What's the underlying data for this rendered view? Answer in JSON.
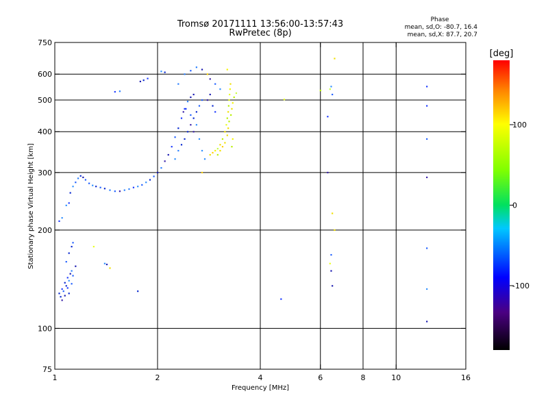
{
  "header": {
    "title": "Tromsø 20171111 13:56:00-13:57:43",
    "subtitle": "RwPretec (8p)"
  },
  "phase_box": {
    "heading": "Phase",
    "line_o": "mean, sd,O: -80.7, 16.4",
    "line_x": "mean, sd,X:  87.7, 20.7"
  },
  "chart_data": {
    "type": "scatter",
    "title": "Tromsø 20171111 13:56:00-13:57:43",
    "subtitle": "RwPretec (8p)",
    "xlabel": "Frequency [MHz]",
    "ylabel": "Stationary phase Virtual Height [km]",
    "x_scale": "log",
    "y_scale": "log",
    "xlim": [
      1,
      16
    ],
    "ylim": [
      75,
      750
    ],
    "x_ticks": [
      1,
      2,
      4,
      6,
      8,
      10,
      16
    ],
    "x_tick_labels": [
      "1",
      "2",
      "4",
      "6",
      "8",
      "10",
      "16"
    ],
    "x_gridlines": [
      2,
      4,
      6,
      8,
      10
    ],
    "y_ticks": [
      75,
      100,
      200,
      300,
      400,
      500,
      600,
      750
    ],
    "y_tick_labels": [
      "75",
      "100",
      "200",
      "300",
      "400",
      "500",
      "600",
      "750"
    ],
    "y_gridlines": [
      100,
      200,
      300,
      400,
      500,
      600
    ],
    "grid": true,
    "colorbar": {
      "label": "[deg]",
      "range": [
        -180,
        180
      ],
      "ticks": [
        100,
        0,
        -100
      ],
      "tick_labels": [
        "100",
        "0",
        "-100"
      ]
    },
    "series": [
      {
        "mode": "O",
        "points": [
          [
            1.03,
            128
          ],
          [
            1.04,
            125
          ],
          [
            1.05,
            132
          ],
          [
            1.06,
            130
          ],
          [
            1.07,
            138
          ],
          [
            1.08,
            135
          ],
          [
            1.09,
            143
          ],
          [
            1.1,
            140
          ],
          [
            1.11,
            147
          ],
          [
            1.12,
            150
          ],
          [
            1.13,
            145
          ],
          [
            1.05,
            122
          ],
          [
            1.07,
            126
          ],
          [
            1.09,
            133
          ],
          [
            1.1,
            128
          ],
          [
            1.12,
            137
          ],
          [
            1.15,
            155
          ],
          [
            1.08,
            160
          ],
          [
            1.1,
            170
          ],
          [
            1.12,
            178
          ],
          [
            1.13,
            183
          ],
          [
            1.03,
            213
          ],
          [
            1.05,
            218
          ],
          [
            1.08,
            238
          ],
          [
            1.1,
            242
          ],
          [
            1.11,
            260
          ],
          [
            1.13,
            272
          ],
          [
            1.15,
            280
          ],
          [
            1.17,
            288
          ],
          [
            1.19,
            293
          ],
          [
            1.21,
            290
          ],
          [
            1.23,
            285
          ],
          [
            1.26,
            278
          ],
          [
            1.29,
            274
          ],
          [
            1.32,
            272
          ],
          [
            1.36,
            270
          ],
          [
            1.4,
            268
          ],
          [
            1.45,
            265
          ],
          [
            1.5,
            263
          ],
          [
            1.55,
            263
          ],
          [
            1.6,
            265
          ],
          [
            1.65,
            267
          ],
          [
            1.7,
            270
          ],
          [
            1.75,
            272
          ],
          [
            1.8,
            275
          ],
          [
            1.85,
            280
          ],
          [
            1.9,
            285
          ],
          [
            1.95,
            292
          ],
          [
            2.0,
            300
          ],
          [
            2.05,
            310
          ],
          [
            2.1,
            325
          ],
          [
            2.15,
            340
          ],
          [
            2.2,
            360
          ],
          [
            2.25,
            385
          ],
          [
            2.3,
            410
          ],
          [
            2.35,
            440
          ],
          [
            2.4,
            470
          ],
          [
            2.45,
            495
          ],
          [
            2.5,
            510
          ],
          [
            2.55,
            520
          ],
          [
            2.25,
            330
          ],
          [
            2.3,
            350
          ],
          [
            2.35,
            365
          ],
          [
            2.4,
            380
          ],
          [
            2.45,
            400
          ],
          [
            2.5,
            420
          ],
          [
            2.55,
            440
          ],
          [
            2.6,
            460
          ],
          [
            2.65,
            480
          ],
          [
            2.7,
            500
          ],
          [
            2.38,
            460
          ],
          [
            2.42,
            470
          ],
          [
            2.5,
            450
          ],
          [
            2.55,
            400
          ],
          [
            2.6,
            420
          ],
          [
            2.65,
            380
          ],
          [
            2.7,
            350
          ],
          [
            2.75,
            330
          ],
          [
            2.8,
            500
          ],
          [
            2.85,
            520
          ],
          [
            2.9,
            480
          ],
          [
            2.95,
            460
          ],
          [
            2.3,
            560
          ],
          [
            2.4,
            600
          ],
          [
            2.5,
            615
          ],
          [
            2.6,
            630
          ],
          [
            2.7,
            620
          ],
          [
            2.85,
            580
          ],
          [
            2.95,
            560
          ],
          [
            3.05,
            540
          ],
          [
            1.5,
            530
          ],
          [
            1.55,
            532
          ],
          [
            1.78,
            570
          ],
          [
            1.82,
            575
          ],
          [
            1.87,
            582
          ],
          [
            2.05,
            612
          ],
          [
            2.1,
            608
          ],
          [
            1.4,
            158
          ],
          [
            1.42,
            157
          ],
          [
            1.75,
            130
          ],
          [
            4.6,
            123
          ],
          [
            6.3,
            300
          ],
          [
            6.45,
            550
          ],
          [
            6.5,
            520
          ],
          [
            6.3,
            445
          ],
          [
            6.45,
            168
          ],
          [
            6.45,
            150
          ],
          [
            6.5,
            135
          ],
          [
            12.3,
            105
          ],
          [
            12.3,
            132
          ],
          [
            12.3,
            176
          ],
          [
            12.3,
            290
          ],
          [
            12.3,
            380
          ],
          [
            12.3,
            480
          ],
          [
            12.3,
            550
          ]
        ]
      },
      {
        "mode": "X",
        "points": [
          [
            2.85,
            340
          ],
          [
            2.9,
            345
          ],
          [
            2.95,
            350
          ],
          [
            3.0,
            355
          ],
          [
            3.05,
            365
          ],
          [
            3.1,
            380
          ],
          [
            3.15,
            400
          ],
          [
            3.18,
            420
          ],
          [
            3.2,
            440
          ],
          [
            3.22,
            460
          ],
          [
            3.23,
            480
          ],
          [
            3.24,
            500
          ],
          [
            3.25,
            520
          ],
          [
            3.26,
            540
          ],
          [
            3.27,
            560
          ],
          [
            3.2,
            390
          ],
          [
            3.15,
            370
          ],
          [
            3.1,
            360
          ],
          [
            3.05,
            350
          ],
          [
            3.0,
            340
          ],
          [
            3.22,
            410
          ],
          [
            3.24,
            430
          ],
          [
            3.28,
            450
          ],
          [
            3.3,
            470
          ],
          [
            3.32,
            490
          ],
          [
            3.35,
            510
          ],
          [
            3.32,
            380
          ],
          [
            3.3,
            360
          ],
          [
            3.4,
            525
          ],
          [
            3.2,
            620
          ],
          [
            2.8,
            600
          ],
          [
            4.7,
            502
          ],
          [
            6.0,
            535
          ],
          [
            6.6,
            670
          ],
          [
            6.4,
            540
          ],
          [
            6.5,
            225
          ],
          [
            6.6,
            200
          ],
          [
            6.4,
            158
          ],
          [
            1.3,
            178
          ],
          [
            1.45,
            153
          ],
          [
            2.7,
            300
          ]
        ]
      }
    ]
  }
}
